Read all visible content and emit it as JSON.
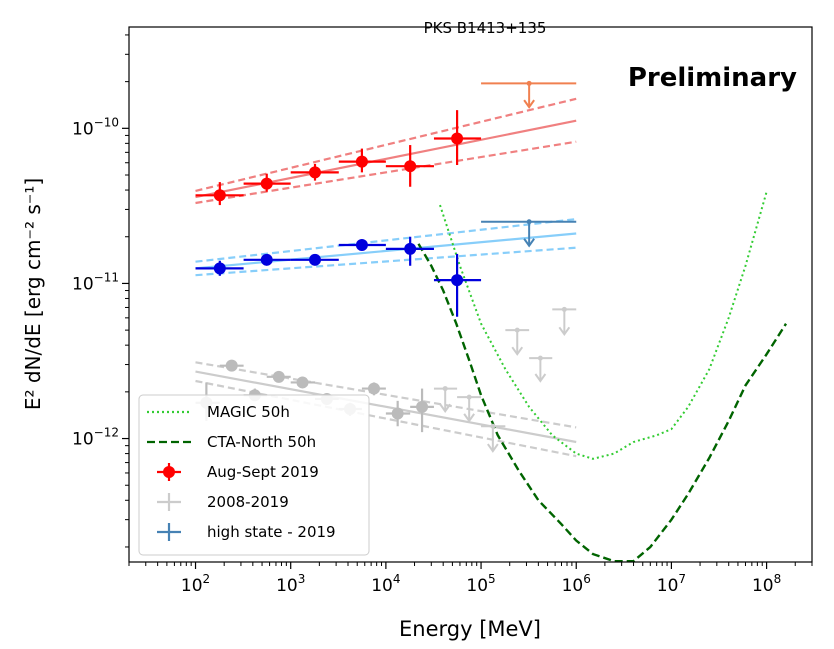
{
  "chart_data": {
    "type": "scatter",
    "title": "PKS B1413+135",
    "watermark": "Preliminary",
    "xlabel": "Energy [MeV]",
    "ylabel": "E² dN/dE [erg cm⁻² s⁻¹]",
    "xscale": "log",
    "yscale": "log",
    "xlim": [
      20,
      300000000
    ],
    "ylim": [
      1.6e-13,
      4.5e-10
    ],
    "xticks": [
      100,
      1000,
      10000,
      100000,
      1000000,
      10000000,
      100000000
    ],
    "xtick_labels": [
      {
        "base": "10",
        "exp": "2"
      },
      {
        "base": "10",
        "exp": "3"
      },
      {
        "base": "10",
        "exp": "4"
      },
      {
        "base": "10",
        "exp": "5"
      },
      {
        "base": "10",
        "exp": "6"
      },
      {
        "base": "10",
        "exp": "7"
      },
      {
        "base": "10",
        "exp": "8"
      }
    ],
    "yticks": [
      1e-12,
      1e-11,
      1e-10
    ],
    "ytick_labels": [
      {
        "base": "10",
        "exp": "−12"
      },
      {
        "base": "10",
        "exp": "−11"
      },
      {
        "base": "10",
        "exp": "−10"
      }
    ],
    "grid": false,
    "legend_position": "lower-left",
    "legend": [
      {
        "label": "MAGIC 50h",
        "style": "dotted-line",
        "color": "#33cc33"
      },
      {
        "label": "CTA-North 50h",
        "style": "dashed-line",
        "color": "#006400"
      },
      {
        "label": "Aug-Sept 2019",
        "style": "errorbar-marker",
        "color": "#ff0000"
      },
      {
        "label": "2008-2019",
        "style": "errorbar",
        "color": "#cccccc"
      },
      {
        "label": "high state - 2019",
        "style": "errorbar",
        "color": "#4682b4"
      }
    ],
    "series": [
      {
        "name": "Aug-Sept 2019",
        "kind": "points",
        "color": "#ff0000",
        "marker": true,
        "points": [
          {
            "x": 180,
            "xlo": 100,
            "xhi": 320,
            "y": 3.7e-11,
            "ylo": 3.2e-11,
            "yhi": 4.5e-11
          },
          {
            "x": 560,
            "xlo": 320,
            "xhi": 1000,
            "y": 4.4e-11,
            "ylo": 3.9e-11,
            "yhi": 5.1e-11
          },
          {
            "x": 1800,
            "xlo": 1000,
            "xhi": 3200,
            "y": 5.2e-11,
            "ylo": 4.6e-11,
            "yhi": 5.9e-11
          },
          {
            "x": 5600,
            "xlo": 3200,
            "xhi": 10000,
            "y": 6.1e-11,
            "ylo": 5.2e-11,
            "yhi": 7.4e-11
          },
          {
            "x": 18000,
            "xlo": 10000,
            "xhi": 32000,
            "y": 5.7e-11,
            "ylo": 4.2e-11,
            "yhi": 7.8e-11
          },
          {
            "x": 56000,
            "xlo": 32000,
            "xhi": 100000,
            "y": 8.6e-11,
            "ylo": 5.8e-11,
            "yhi": 1.31e-10
          }
        ]
      },
      {
        "name": "high state - 2019 (SED points)",
        "kind": "points",
        "color": "#0000dd",
        "marker": true,
        "points": [
          {
            "x": 180,
            "xlo": 100,
            "xhi": 320,
            "y": 1.25e-11,
            "ylo": 1.12e-11,
            "yhi": 1.4e-11
          },
          {
            "x": 560,
            "xlo": 320,
            "xhi": 1000,
            "y": 1.42e-11,
            "ylo": 1.35e-11,
            "yhi": 1.5e-11
          },
          {
            "x": 1800,
            "xlo": 1000,
            "xhi": 3200,
            "y": 1.42e-11,
            "ylo": 1.35e-11,
            "yhi": 1.5e-11
          },
          {
            "x": 5600,
            "xlo": 3200,
            "xhi": 10000,
            "y": 1.77e-11,
            "ylo": 1.65e-11,
            "yhi": 1.9e-11
          },
          {
            "x": 18000,
            "xlo": 10000,
            "xhi": 32000,
            "y": 1.67e-11,
            "ylo": 1.3e-11,
            "yhi": 2e-11
          },
          {
            "x": 56000,
            "xlo": 32000,
            "xhi": 100000,
            "y": 1.05e-11,
            "ylo": 6.1e-12,
            "yhi": 1.55e-11
          }
        ]
      },
      {
        "name": "2008-2019",
        "kind": "points",
        "color": "#bbbbbb",
        "marker": true,
        "points": [
          {
            "x": 130,
            "xlo": 100,
            "xhi": 180,
            "y": 1.7e-12,
            "ylo": 1.3e-12,
            "yhi": 2.3e-12
          },
          {
            "x": 240,
            "xlo": 180,
            "xhi": 320,
            "y": 2.95e-12,
            "ylo": 2.75e-12,
            "yhi": 3.2e-12
          },
          {
            "x": 420,
            "xlo": 320,
            "xhi": 560,
            "y": 1.9e-12,
            "ylo": 1.75e-12,
            "yhi": 2.1e-12
          },
          {
            "x": 750,
            "xlo": 560,
            "xhi": 1000,
            "y": 2.5e-12,
            "ylo": 2.35e-12,
            "yhi": 2.65e-12
          },
          {
            "x": 1330,
            "xlo": 1000,
            "xhi": 1800,
            "y": 2.3e-12,
            "ylo": 2.15e-12,
            "yhi": 2.45e-12
          },
          {
            "x": 2400,
            "xlo": 1800,
            "xhi": 3200,
            "y": 1.8e-12,
            "ylo": 1.65e-12,
            "yhi": 1.95e-12
          },
          {
            "x": 4200,
            "xlo": 3200,
            "xhi": 5600,
            "y": 1.55e-12,
            "ylo": 1.4e-12,
            "yhi": 1.7e-12
          },
          {
            "x": 7500,
            "xlo": 5600,
            "xhi": 10000,
            "y": 2.1e-12,
            "ylo": 1.9e-12,
            "yhi": 2.3e-12
          },
          {
            "x": 13300,
            "xlo": 10000,
            "xhi": 18000,
            "y": 1.45e-12,
            "ylo": 1.2e-12,
            "yhi": 1.75e-12
          },
          {
            "x": 24000,
            "xlo": 18000,
            "xhi": 32000,
            "y": 1.6e-12,
            "ylo": 1.1e-12,
            "yhi": 2.1e-12
          }
        ]
      },
      {
        "name": "2008-2019 (upper limits)",
        "kind": "upper_limits",
        "color": "#cccccc",
        "points": [
          {
            "x": 42000,
            "xlo": 32000,
            "xhi": 56000,
            "y": 2.1e-12,
            "ytip": 1.5e-12
          },
          {
            "x": 75000,
            "xlo": 56000,
            "xhi": 100000,
            "y": 1.85e-12,
            "ytip": 1.3e-12
          },
          {
            "x": 133000,
            "xlo": 100000,
            "xhi": 180000,
            "y": 1.2e-12,
            "ytip": 8.3e-13
          },
          {
            "x": 240000,
            "xlo": 180000,
            "xhi": 320000,
            "y": 5e-12,
            "ytip": 3.5e-12
          },
          {
            "x": 420000,
            "xlo": 320000,
            "xhi": 560000,
            "y": 3.3e-12,
            "ytip": 2.35e-12
          },
          {
            "x": 750000,
            "xlo": 560000,
            "xhi": 1000000,
            "y": 6.8e-12,
            "ytip": 4.7e-12
          }
        ]
      },
      {
        "name": "high state - 2019 (upper limit)",
        "kind": "upper_limits",
        "color": "#4682b4",
        "points": [
          {
            "x": 320000,
            "xlo": 100000,
            "xhi": 1000000,
            "y": 2.5e-11,
            "ytip": 1.75e-11
          }
        ]
      },
      {
        "name": "Aug-Sept 2019 (upper limit)",
        "kind": "upper_limits",
        "color": "#f08050",
        "points": [
          {
            "x": 320000,
            "xlo": 100000,
            "xhi": 1000000,
            "y": 1.95e-10,
            "ytip": 1.37e-10
          }
        ]
      },
      {
        "name": "Aug-Sept 2019 fit",
        "kind": "powerlaw_band",
        "color": "#f08080",
        "x": [
          100,
          1000000
        ],
        "center": [
          3.6e-11,
          1.12e-10
        ],
        "upper": [
          3.95e-11,
          1.55e-10
        ],
        "lower": [
          3.3e-11,
          8.2e-11
        ]
      },
      {
        "name": "high state - 2019 fit",
        "kind": "powerlaw_band",
        "color": "#87cefa",
        "x": [
          100,
          1000000
        ],
        "center": [
          1.25e-11,
          2.1e-11
        ],
        "upper": [
          1.38e-11,
          2.6e-11
        ],
        "lower": [
          1.13e-11,
          1.7e-11
        ]
      },
      {
        "name": "2008-2019 fit",
        "kind": "powerlaw_band",
        "color": "#cccccc",
        "x": [
          100,
          1000000
        ],
        "center": [
          2.7e-12,
          9.5e-13
        ],
        "upper": [
          3.1e-12,
          1.18e-12
        ],
        "lower": [
          2.35e-12,
          7.7e-13
        ]
      },
      {
        "name": "MAGIC 50h",
        "kind": "sensitivity_curve",
        "color": "#33cc33",
        "style": "dotted",
        "x": [
          37000,
          60000,
          100000,
          180000,
          320000,
          560000,
          1000000,
          1500000,
          2500000,
          4000000,
          7000000,
          10000000,
          15000000,
          25000000,
          40000000,
          60000000,
          100000000
        ],
        "y": [
          3.2e-11,
          1.3e-11,
          5.5e-12,
          2.8e-12,
          1.6e-12,
          1.05e-12,
          8e-13,
          7.4e-13,
          8e-13,
          9.5e-13,
          1.05e-12,
          1.15e-12,
          1.6e-12,
          2.8e-12,
          6e-12,
          1.3e-11,
          3.9e-11
        ]
      },
      {
        "name": "CTA-North 50h",
        "kind": "sensitivity_curve",
        "color": "#006400",
        "style": "dashed",
        "x": [
          22000,
          30000,
          40000,
          55000,
          75000,
          100000,
          150000,
          250000,
          400000,
          700000,
          1000000,
          1500000,
          2500000,
          4000000,
          6000000,
          10000000,
          15000000,
          25000000,
          40000000,
          60000000,
          100000000,
          160000000
        ],
        "y": [
          1.8e-11,
          1.3e-11,
          9e-12,
          5.5e-12,
          3.2e-12,
          1.9e-12,
          1.05e-12,
          6.2e-13,
          4e-13,
          2.8e-13,
          2.2e-13,
          1.8e-13,
          1.62e-13,
          1.62e-13,
          2e-13,
          3e-13,
          4.4e-13,
          7.5e-13,
          1.3e-12,
          2.2e-12,
          3.5e-12,
          5.5e-12
        ]
      }
    ]
  }
}
